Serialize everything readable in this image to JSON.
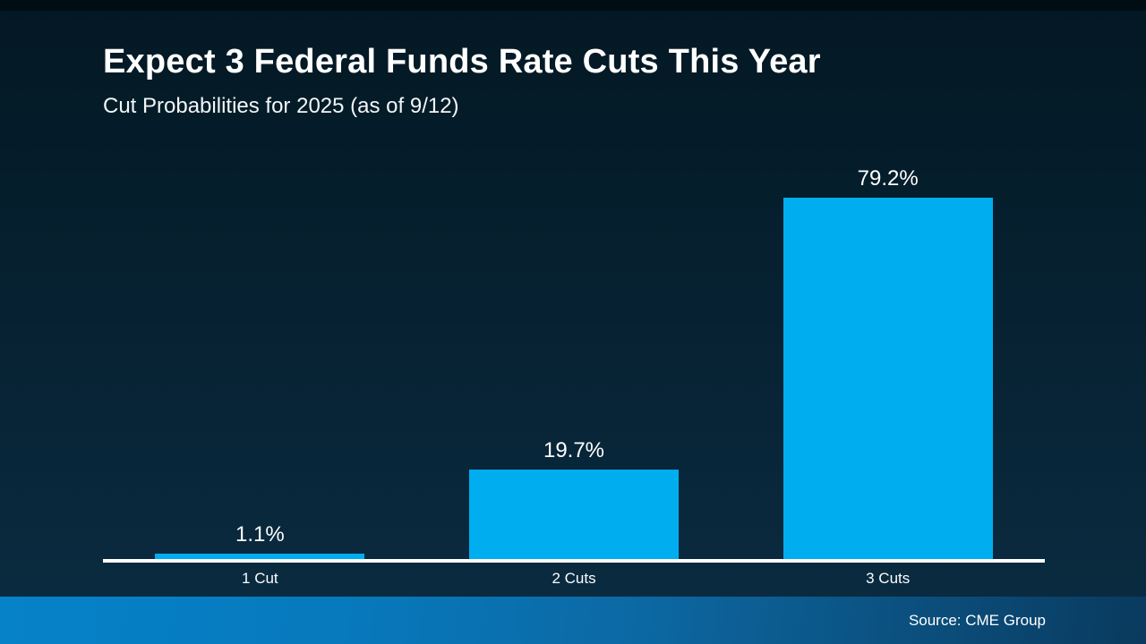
{
  "header": {
    "title": "Expect 3 Federal Funds Rate Cuts This Year",
    "subtitle": "Cut Probabilities for 2025 (as of 9/12)"
  },
  "chart_data": {
    "type": "bar",
    "title": "Expect 3 Federal Funds Rate Cuts This Year",
    "subtitle": "Cut Probabilities for 2025 (as of 9/12)",
    "categories": [
      "1 Cut",
      "2 Cuts",
      "3 Cuts"
    ],
    "values": [
      1.1,
      19.7,
      79.2
    ],
    "labels": [
      "1.1%",
      "19.7%",
      "79.2%"
    ],
    "unit": "%",
    "ylim": [
      0,
      100
    ],
    "grid": "off",
    "legend": "none",
    "xlabel": "",
    "ylabel": ""
  },
  "footer": {
    "source": "Source: CME Group"
  },
  "colors": {
    "bar": "#00AEEF",
    "axis": "#FFFFFF",
    "background_top": "#031823",
    "background_bottom": "#0B2C42",
    "footer_gradient_left": "#0682C9",
    "footer_gradient_right": "#0A3A5E",
    "text": "#FFFFFF"
  }
}
